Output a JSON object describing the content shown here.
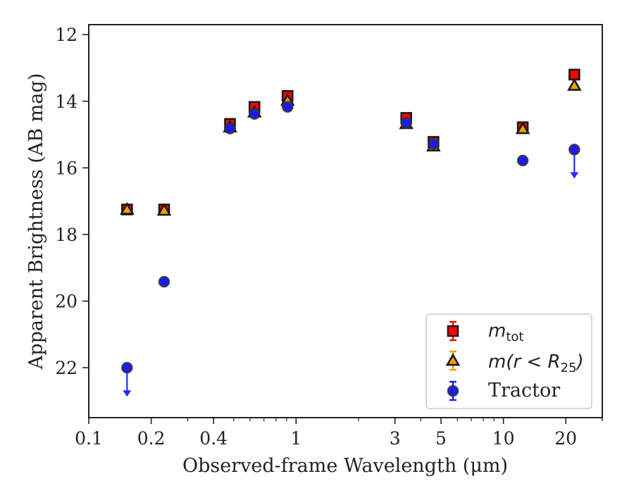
{
  "chart_data": {
    "type": "scatter",
    "xlabel": "Observed-frame Wavelength (μm)",
    "ylabel": "Apparent Brightness (AB mag)",
    "x_scale": "log",
    "xlim": [
      0.1,
      30
    ],
    "ylim": [
      23.5,
      11.7
    ],
    "y_inverted": true,
    "grid": false,
    "legend_position": "lower-right",
    "x_ticks": [
      {
        "value": 0.1,
        "label": "0.1"
      },
      {
        "value": 0.2,
        "label": "0.2"
      },
      {
        "value": 0.4,
        "label": "0.4"
      },
      {
        "value": 1,
        "label": "1"
      },
      {
        "value": 3,
        "label": "3"
      },
      {
        "value": 5,
        "label": "5"
      },
      {
        "value": 10,
        "label": "10"
      },
      {
        "value": 20,
        "label": "20"
      }
    ],
    "y_ticks": [
      12,
      14,
      16,
      18,
      20,
      22
    ],
    "series": [
      {
        "name": "m_tot",
        "legend_label": "mtot",
        "marker": "square",
        "color": "#ff0000",
        "edge_color": "#1a1a1a",
        "x": [
          0.153,
          0.231,
          0.48,
          0.63,
          0.91,
          3.4,
          4.6,
          12.4,
          22.0
        ],
        "y": [
          17.25,
          17.25,
          14.68,
          14.17,
          13.84,
          14.5,
          15.22,
          14.78,
          13.2
        ]
      },
      {
        "name": "m(r < R25)",
        "legend_label": "m(r<R25)",
        "marker": "triangle",
        "color": "#f5a000",
        "edge_color": "#1a1a1a",
        "x": [
          0.153,
          0.231,
          0.48,
          0.63,
          0.91,
          3.4,
          4.6,
          12.4,
          22.0
        ],
        "y": [
          17.25,
          17.28,
          14.78,
          14.33,
          13.98,
          14.68,
          15.35,
          14.83,
          13.53
        ]
      },
      {
        "name": "Tractor",
        "legend_label": "Tractor",
        "marker": "circle",
        "color": "#1a1aff",
        "edge_color": "#333333",
        "x": [
          0.153,
          0.231,
          0.48,
          0.63,
          0.91,
          3.4,
          4.6,
          12.4,
          22.0
        ],
        "y": [
          22.0,
          19.42,
          14.82,
          14.38,
          14.17,
          14.65,
          15.28,
          15.78,
          15.45
        ],
        "upper_limits": [
          true,
          false,
          false,
          false,
          false,
          false,
          false,
          false,
          true
        ]
      }
    ]
  }
}
